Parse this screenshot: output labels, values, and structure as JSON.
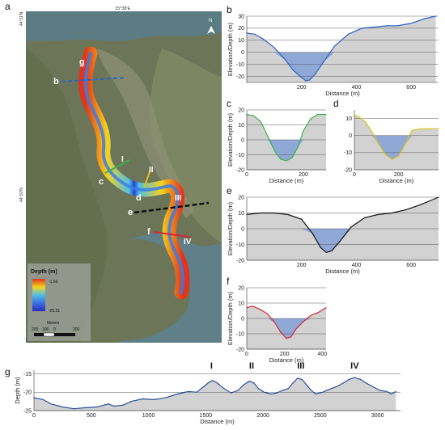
{
  "panel_letters": {
    "a": "a",
    "b": "b",
    "c": "c",
    "d": "d",
    "e": "e",
    "f": "f",
    "g": "g"
  },
  "map": {
    "top_coord": "15°38'E",
    "left_coord_top": "44°11'N",
    "left_coord_mid": "44°10'N",
    "north_label": "N",
    "profile_labels": [
      "g",
      "b",
      "I",
      "II",
      "c",
      "d",
      "III",
      "e",
      "f",
      "IV"
    ],
    "legend": {
      "title": "Depth (m)",
      "max_label": "-1.66",
      "min_label": "-25.31",
      "scale_title": "Meters",
      "scale_ticks": [
        "200",
        "100",
        "0",
        "200"
      ]
    },
    "colors": {
      "water": "#5d7f86",
      "land": "#6f7a5c",
      "land_light": "#9a9a86",
      "line_b": "#2d62c9",
      "line_c": "#3db14a",
      "line_d": "#e0c21a",
      "line_e": "#111111",
      "line_f": "#d4263c"
    }
  },
  "chart_data": [
    {
      "id": "b",
      "type": "area",
      "xlabel": "Distance (m)",
      "ylabel": "Elevation/Depth (m)",
      "xlim": [
        0,
        700
      ],
      "ylim": [
        -25,
        30
      ],
      "xticks": [
        200,
        400,
        600
      ],
      "yticks": [
        -20,
        -10,
        0,
        10,
        20,
        30
      ],
      "line_color": "#2d62c9",
      "x": [
        0,
        30,
        60,
        100,
        140,
        170,
        200,
        215,
        230,
        250,
        280,
        320,
        370,
        420,
        470,
        510,
        550,
        600,
        650,
        690
      ],
      "y": [
        16,
        15,
        11,
        4,
        -6,
        -15,
        -21,
        -23.5,
        -23,
        -18,
        -8,
        5,
        15,
        20,
        21,
        22,
        22,
        24,
        28,
        30
      ]
    },
    {
      "id": "c",
      "type": "area",
      "xlabel": "Distance (m)",
      "ylabel": "Elevation/Depth (m)",
      "xlim": [
        0,
        280
      ],
      "ylim": [
        -20,
        20
      ],
      "xticks": [
        0,
        200
      ],
      "yticks": [
        -20,
        -10,
        0,
        10,
        20
      ],
      "line_color": "#3db14a",
      "x": [
        0,
        25,
        50,
        75,
        100,
        120,
        140,
        160,
        180,
        200,
        225,
        250,
        280
      ],
      "y": [
        17,
        16,
        12,
        2,
        -8,
        -13,
        -14,
        -12,
        -5,
        6,
        14,
        17,
        17
      ]
    },
    {
      "id": "d",
      "type": "area",
      "xlabel": "Distance (m)",
      "ylabel": "",
      "xlim": [
        0,
        380
      ],
      "ylim": [
        -20,
        15
      ],
      "xticks": [
        0,
        200
      ],
      "yticks": [
        -20,
        -10,
        0,
        10
      ],
      "line_color": "#e0c21a",
      "x": [
        0,
        20,
        50,
        80,
        110,
        140,
        170,
        200,
        230,
        260,
        300,
        340,
        380
      ],
      "y": [
        12,
        11,
        8,
        2,
        -5,
        -11,
        -14,
        -12,
        -5,
        3,
        4,
        4,
        4
      ]
    },
    {
      "id": "e",
      "type": "area",
      "xlabel": "Distance (m)",
      "ylabel": "Elevation/Depth (m)",
      "xlim": [
        0,
        700
      ],
      "ylim": [
        -20,
        20
      ],
      "xticks": [
        200,
        400,
        600
      ],
      "yticks": [
        -20,
        -10,
        0,
        10,
        20
      ],
      "line_color": "#111111",
      "x": [
        0,
        50,
        100,
        150,
        200,
        240,
        270,
        290,
        310,
        340,
        380,
        430,
        480,
        530,
        580,
        630,
        700
      ],
      "y": [
        9,
        10,
        10,
        9,
        6,
        -3,
        -12,
        -15,
        -14,
        -8,
        1,
        7,
        9,
        10,
        12,
        15,
        20
      ]
    },
    {
      "id": "f",
      "type": "area",
      "xlabel": "Distance (m)",
      "ylabel": "Elevation/Depth (m)",
      "xlim": [
        0,
        420
      ],
      "ylim": [
        -20,
        20
      ],
      "xticks": [
        0,
        200,
        400
      ],
      "yticks": [
        -20,
        -10,
        0,
        10,
        20
      ],
      "line_color": "#d4263c",
      "x": [
        0,
        30,
        70,
        110,
        150,
        180,
        210,
        235,
        260,
        300,
        340,
        380,
        420
      ],
      "y": [
        7,
        8,
        6,
        3,
        -3,
        -9,
        -13,
        -12,
        -7,
        -2,
        2,
        4,
        7
      ]
    },
    {
      "id": "g",
      "type": "area",
      "xlabel": "Distance (m)",
      "ylabel": "Depth (m)",
      "xlim": [
        0,
        3200
      ],
      "ylim": [
        -25,
        -14
      ],
      "xticks": [
        0,
        500,
        1000,
        1500,
        2000,
        2500,
        3000
      ],
      "yticks": [
        -25,
        -20,
        -15
      ],
      "line_color": "#2a4f9a",
      "annotations": [
        {
          "text": "I",
          "x": 1550
        },
        {
          "text": "II",
          "x": 1900
        },
        {
          "text": "III",
          "x": 2330
        },
        {
          "text": "IV",
          "x": 2800
        }
      ],
      "x": [
        0,
        80,
        150,
        250,
        350,
        450,
        550,
        650,
        700,
        780,
        850,
        950,
        1050,
        1150,
        1250,
        1350,
        1420,
        1480,
        1520,
        1560,
        1600,
        1660,
        1720,
        1780,
        1830,
        1880,
        1920,
        1960,
        2010,
        2070,
        2120,
        2170,
        2220,
        2260,
        2300,
        2340,
        2380,
        2420,
        2460,
        2520,
        2580,
        2640,
        2700,
        2750,
        2800,
        2850,
        2900,
        2960,
        3020,
        3080,
        3120,
        3160
      ],
      "y": [
        -21.5,
        -22,
        -23.2,
        -24,
        -24.5,
        -24.2,
        -24,
        -23.2,
        -23.8,
        -23.5,
        -22.5,
        -21.8,
        -22,
        -21.5,
        -20.5,
        -19.8,
        -20,
        -18.5,
        -17.5,
        -16.8,
        -17.5,
        -19,
        -20.2,
        -19.5,
        -18,
        -17,
        -17.5,
        -19,
        -20,
        -20.5,
        -20.2,
        -19.5,
        -19,
        -17.5,
        -16.2,
        -16.5,
        -18,
        -19.5,
        -20.5,
        -20,
        -19.2,
        -18.5,
        -17.5,
        -16.5,
        -16,
        -16.5,
        -17.5,
        -18.5,
        -19.5,
        -19.8,
        -20.5,
        -19.8
      ]
    }
  ]
}
